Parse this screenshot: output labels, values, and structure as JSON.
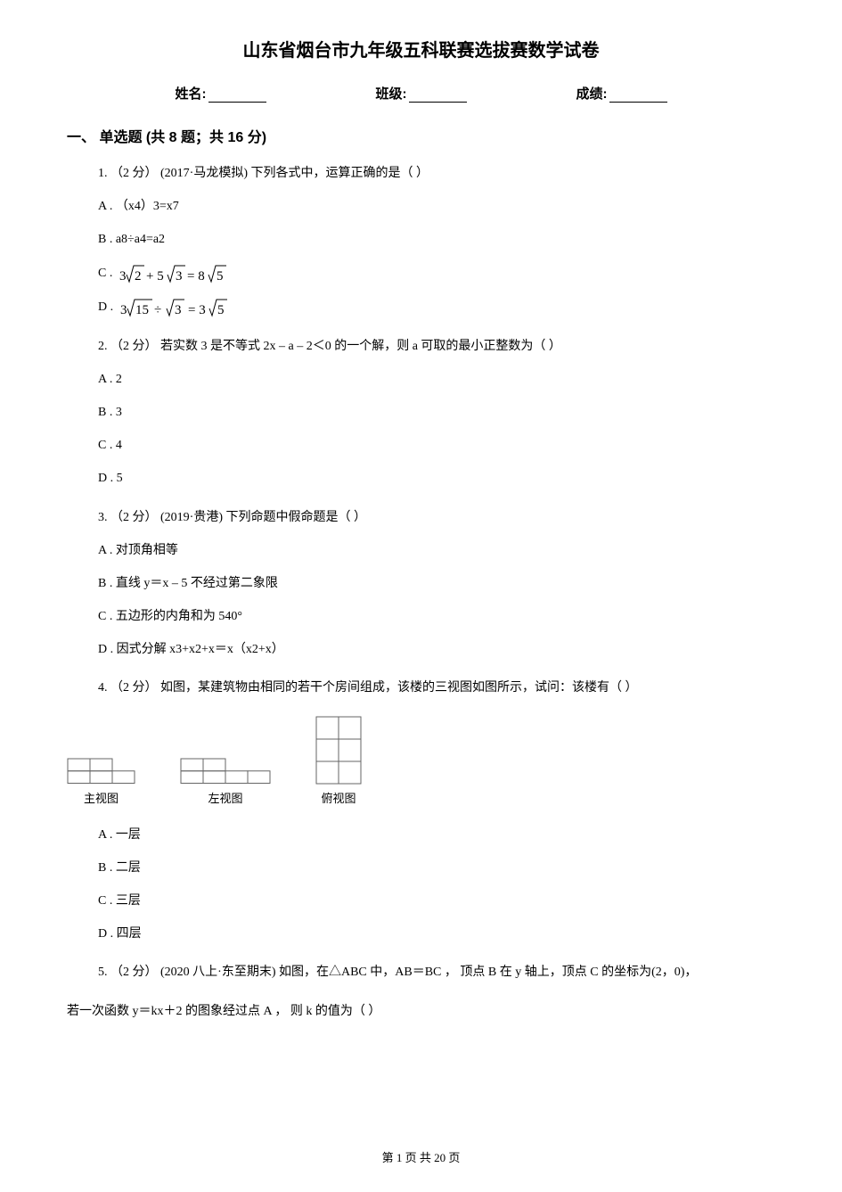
{
  "title": "山东省烟台市九年级五科联赛选拔赛数学试卷",
  "header": {
    "name_label": "姓名:",
    "class_label": "班级:",
    "score_label": "成绩:"
  },
  "section": {
    "header": "一、 单选题 (共 8 题；共 16 分)"
  },
  "q1": {
    "text": "1.   （2 分）  (2017·马龙模拟) 下列各式中，运算正确的是（      ）",
    "optA": "A .  （x4）3=x7",
    "optB": "B .  a8÷a4=a2",
    "optC_prefix": "C . ",
    "optD_prefix": "D . ",
    "formula_C": {
      "parts": [
        "3",
        "2",
        " + 5",
        "3",
        " = 8",
        "5"
      ],
      "fontsize": 15,
      "color": "#000000"
    },
    "formula_D": {
      "parts": [
        "3",
        "15",
        " ÷ ",
        "3",
        " = 3",
        "5"
      ],
      "fontsize": 15,
      "color": "#000000"
    }
  },
  "q2": {
    "text": "2.   （2 分）  若实数 3 是不等式 2x – a – 2＜0 的一个解，则 a 可取的最小正整数为（      ）",
    "optA": "A . 2",
    "optB": "B . 3",
    "optC": "C . 4",
    "optD": "D . 5"
  },
  "q3": {
    "text": "3.   （2 分）  (2019·贵港) 下列命题中假命题是（      ）",
    "optA": "A .  对顶角相等",
    "optB": "B .  直线 y＝x – 5 不经过第二象限",
    "optC": "C .  五边形的内角和为 540°",
    "optD": "D .  因式分解 x3+x2+x＝x（x2+x）"
  },
  "q4": {
    "text": "4.   （2 分）  如图，某建筑物由相同的若干个房间组成，该楼的三视图如图所示，试问：该楼有（      ）",
    "optA": "A .  一层",
    "optB": "B .  二层",
    "optC": "C .  三层",
    "optD": "D .  四层",
    "views": {
      "front_label": "主视图",
      "left_label": "左视图",
      "top_label": "俯视图",
      "line_color": "#666666",
      "line_width": 1,
      "cell_size": 25,
      "front": {
        "rows": [
          [
            1,
            1,
            0
          ],
          [
            1,
            1,
            1
          ]
        ]
      },
      "left": {
        "rows": [
          [
            1,
            1,
            0,
            0
          ],
          [
            1,
            1,
            1,
            1
          ]
        ]
      },
      "top": {
        "rows": [
          [
            1,
            1
          ],
          [
            1,
            1
          ],
          [
            1,
            1
          ]
        ]
      }
    }
  },
  "q5": {
    "line1": "5.   （2 分）  (2020 八上·东至期末) 如图，在△ABC 中，AB＝BC ，  顶点 B 在 y 轴上，顶点 C 的坐标为(2，0)，",
    "line2": "若一次函数 y＝kx＋2 的图象经过点 A ，  则 k 的值为（      ）"
  },
  "footer": {
    "text": "第 1 页 共 20 页"
  },
  "colors": {
    "text": "#000000",
    "background": "#ffffff",
    "svg_stroke": "#666666"
  }
}
